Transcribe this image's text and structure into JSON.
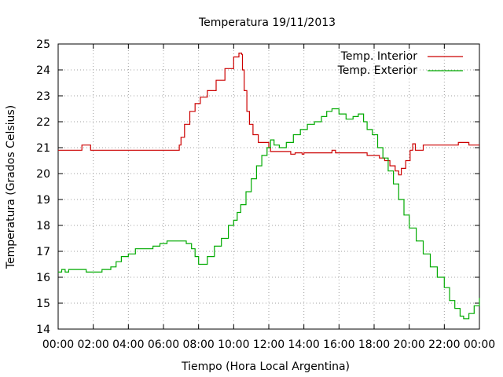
{
  "chart_data": {
    "type": "line",
    "title": "Temperatura 19/11/2013",
    "xlabel": "Tiempo (Hora Local Argentina)",
    "ylabel": "Temperatura (Grados Celsius)",
    "xlim": [
      "00:00",
      "24:00"
    ],
    "ylim": [
      14,
      25
    ],
    "x_ticks": [
      "00:00",
      "02:00",
      "04:00",
      "06:00",
      "08:00",
      "10:00",
      "12:00",
      "14:00",
      "16:00",
      "18:00",
      "20:00",
      "22:00",
      "00:00"
    ],
    "y_ticks": [
      "14",
      "15",
      "16",
      "17",
      "18",
      "19",
      "20",
      "21",
      "22",
      "23",
      "24",
      "25"
    ],
    "grid": true,
    "legend_position": "top-right",
    "x_unit": "hours",
    "series": [
      {
        "name": "Temp. Interior",
        "color": "#cc0000",
        "points": [
          [
            0.0,
            20.9
          ],
          [
            1.3,
            20.9
          ],
          [
            1.35,
            21.1
          ],
          [
            1.8,
            21.1
          ],
          [
            1.85,
            20.9
          ],
          [
            6.8,
            20.9
          ],
          [
            6.9,
            21.1
          ],
          [
            7.0,
            21.4
          ],
          [
            7.2,
            21.9
          ],
          [
            7.5,
            22.4
          ],
          [
            7.8,
            22.7
          ],
          [
            8.1,
            22.95
          ],
          [
            8.5,
            23.2
          ],
          [
            9.0,
            23.6
          ],
          [
            9.5,
            24.05
          ],
          [
            10.0,
            24.5
          ],
          [
            10.3,
            24.65
          ],
          [
            10.45,
            24.6
          ],
          [
            10.5,
            24.0
          ],
          [
            10.6,
            23.2
          ],
          [
            10.75,
            22.4
          ],
          [
            10.9,
            21.9
          ],
          [
            11.1,
            21.5
          ],
          [
            11.4,
            21.2
          ],
          [
            11.9,
            21.2
          ],
          [
            12.0,
            21.0
          ],
          [
            12.1,
            20.85
          ],
          [
            13.2,
            20.85
          ],
          [
            13.25,
            20.75
          ],
          [
            13.5,
            20.8
          ],
          [
            13.9,
            20.75
          ],
          [
            14.0,
            20.8
          ],
          [
            15.5,
            20.8
          ],
          [
            15.6,
            20.9
          ],
          [
            15.8,
            20.8
          ],
          [
            17.5,
            20.8
          ],
          [
            17.6,
            20.7
          ],
          [
            18.3,
            20.6
          ],
          [
            18.6,
            20.5
          ],
          [
            18.9,
            20.3
          ],
          [
            19.2,
            20.1
          ],
          [
            19.4,
            19.95
          ],
          [
            19.55,
            20.2
          ],
          [
            19.8,
            20.5
          ],
          [
            20.05,
            20.9
          ],
          [
            20.2,
            21.15
          ],
          [
            20.35,
            20.9
          ],
          [
            20.6,
            20.9
          ],
          [
            20.8,
            21.1
          ],
          [
            22.7,
            21.1
          ],
          [
            22.8,
            21.2
          ],
          [
            23.3,
            21.2
          ],
          [
            23.4,
            21.1
          ],
          [
            24.0,
            21.1
          ]
        ]
      },
      {
        "name": "Temp. Exterior",
        "color": "#00aa00",
        "points": [
          [
            0.0,
            16.2
          ],
          [
            0.2,
            16.3
          ],
          [
            0.4,
            16.2
          ],
          [
            0.6,
            16.3
          ],
          [
            1.5,
            16.3
          ],
          [
            1.6,
            16.2
          ],
          [
            2.4,
            16.2
          ],
          [
            2.5,
            16.3
          ],
          [
            3.0,
            16.4
          ],
          [
            3.3,
            16.6
          ],
          [
            3.6,
            16.8
          ],
          [
            4.0,
            16.9
          ],
          [
            4.4,
            17.1
          ],
          [
            5.0,
            17.1
          ],
          [
            5.4,
            17.2
          ],
          [
            5.8,
            17.3
          ],
          [
            6.2,
            17.4
          ],
          [
            7.0,
            17.4
          ],
          [
            7.3,
            17.3
          ],
          [
            7.6,
            17.1
          ],
          [
            7.8,
            16.8
          ],
          [
            8.0,
            16.5
          ],
          [
            8.2,
            16.5
          ],
          [
            8.5,
            16.8
          ],
          [
            8.9,
            17.2
          ],
          [
            9.3,
            17.5
          ],
          [
            9.7,
            18.0
          ],
          [
            10.0,
            18.2
          ],
          [
            10.2,
            18.5
          ],
          [
            10.4,
            18.8
          ],
          [
            10.7,
            19.3
          ],
          [
            11.0,
            19.8
          ],
          [
            11.3,
            20.3
          ],
          [
            11.6,
            20.7
          ],
          [
            11.9,
            21.0
          ],
          [
            12.1,
            21.3
          ],
          [
            12.3,
            21.1
          ],
          [
            12.6,
            21.0
          ],
          [
            13.0,
            21.2
          ],
          [
            13.4,
            21.5
          ],
          [
            13.8,
            21.7
          ],
          [
            14.2,
            21.9
          ],
          [
            14.6,
            22.0
          ],
          [
            15.0,
            22.2
          ],
          [
            15.3,
            22.4
          ],
          [
            15.6,
            22.5
          ],
          [
            16.0,
            22.3
          ],
          [
            16.4,
            22.1
          ],
          [
            16.8,
            22.2
          ],
          [
            17.1,
            22.3
          ],
          [
            17.4,
            22.0
          ],
          [
            17.6,
            21.7
          ],
          [
            17.9,
            21.5
          ],
          [
            18.2,
            21.0
          ],
          [
            18.5,
            20.6
          ],
          [
            18.8,
            20.1
          ],
          [
            19.1,
            19.6
          ],
          [
            19.4,
            19.0
          ],
          [
            19.7,
            18.4
          ],
          [
            20.0,
            17.9
          ],
          [
            20.4,
            17.4
          ],
          [
            20.8,
            16.9
          ],
          [
            21.2,
            16.4
          ],
          [
            21.6,
            16.0
          ],
          [
            22.0,
            15.6
          ],
          [
            22.3,
            15.1
          ],
          [
            22.6,
            14.8
          ],
          [
            22.9,
            14.5
          ],
          [
            23.1,
            14.4
          ],
          [
            23.4,
            14.6
          ],
          [
            23.7,
            14.9
          ],
          [
            24.0,
            15.2
          ]
        ]
      }
    ]
  }
}
